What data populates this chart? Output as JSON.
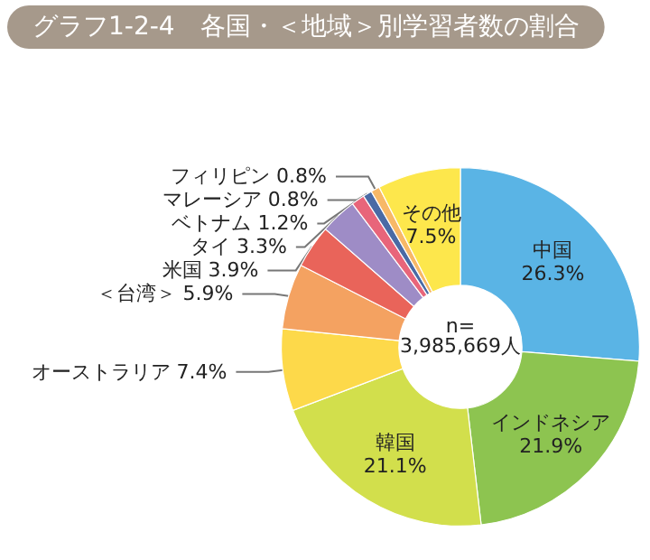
{
  "chart_data": {
    "type": "donut",
    "title": "グラフ1-2-4　各国・＜地域＞別学習者数の割合",
    "categories": [
      "中国",
      "インドネシア",
      "韓国",
      "オーストラリア",
      "＜台湾＞",
      "米国",
      "タイ",
      "ベトナム",
      "マレーシア",
      "フィリピン",
      "その他"
    ],
    "values": [
      26.3,
      21.9,
      21.1,
      7.4,
      5.9,
      3.9,
      3.3,
      1.2,
      0.8,
      0.8,
      7.5
    ],
    "value_labels": [
      "26.3%",
      "21.9%",
      "21.1%",
      "7.4%",
      "5.9%",
      "3.9%",
      "3.3%",
      "1.2%",
      "0.8%",
      "0.8%",
      "7.5%"
    ],
    "colors": [
      "#5ab4e5",
      "#8dc450",
      "#d2df4c",
      "#fdd94a",
      "#f4a261",
      "#e9645a",
      "#9e8cc6",
      "#e8657a",
      "#4a6aa5",
      "#f7b867",
      "#fde74c"
    ],
    "annotations": [
      "n=\n3,985,669人"
    ],
    "legend": false
  }
}
